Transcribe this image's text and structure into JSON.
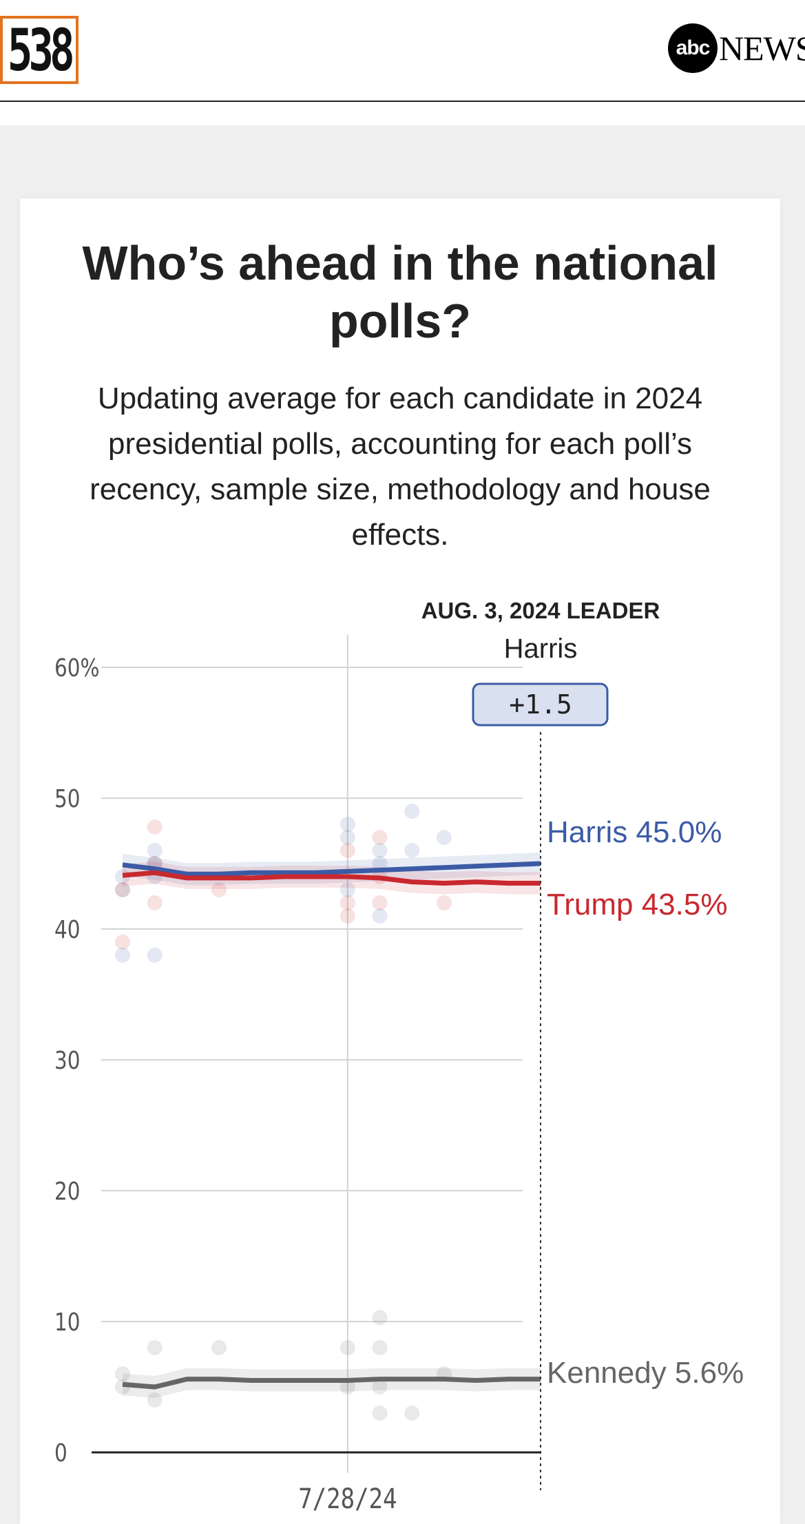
{
  "header": {
    "logo_text": "538",
    "partner_logo_badge": "abc",
    "partner_logo_word": "NEWS"
  },
  "card": {
    "title": "Who’s ahead in the national polls?",
    "subtitle": "Updating average for each candidate in 2024 presidential polls, accounting for each poll’s recency, sample size, methodology and house effects."
  },
  "colors": {
    "harris": "#3b5ba5",
    "trump": "#c8282e",
    "kennedy": "#666666",
    "grid": "#d4d4d4",
    "logo_accent": "#e3731f"
  },
  "chart_data": {
    "type": "line",
    "x_start": "2024-07-21",
    "x_end": "2024-08-03",
    "x_tick_labels": [
      {
        "label": "7/28/24",
        "date": "2024-07-28"
      }
    ],
    "ylim": [
      0,
      60
    ],
    "y_ticks": [
      {
        "value": 60,
        "label": "60%"
      },
      {
        "value": 50,
        "label": "50"
      },
      {
        "value": 40,
        "label": "40"
      },
      {
        "value": 30,
        "label": "30"
      },
      {
        "value": 20,
        "label": "20"
      },
      {
        "value": 10,
        "label": "10"
      },
      {
        "value": 0,
        "label": "0"
      }
    ],
    "grid": true,
    "leader": {
      "heading": "AUG. 3, 2024 LEADER",
      "name": "Harris",
      "margin": "+1.5",
      "date": "2024-08-03"
    },
    "series": [
      {
        "name": "Harris",
        "color_key": "harris",
        "label": "Harris 45.0%",
        "dates": [
          "2024-07-21",
          "2024-07-22",
          "2024-07-23",
          "2024-07-24",
          "2024-07-25",
          "2024-07-26",
          "2024-07-27",
          "2024-07-28",
          "2024-07-29",
          "2024-07-30",
          "2024-07-31",
          "2024-08-01",
          "2024-08-02",
          "2024-08-03"
        ],
        "values": [
          44.9,
          44.6,
          44.2,
          44.2,
          44.3,
          44.3,
          44.3,
          44.4,
          44.5,
          44.6,
          44.7,
          44.8,
          44.9,
          45.0
        ],
        "polls": [
          {
            "date": "2024-07-21",
            "value": 44
          },
          {
            "date": "2024-07-21",
            "value": 43
          },
          {
            "date": "2024-07-21",
            "value": 38
          },
          {
            "date": "2024-07-22",
            "value": 46
          },
          {
            "date": "2024-07-22",
            "value": 45
          },
          {
            "date": "2024-07-22",
            "value": 44
          },
          {
            "date": "2024-07-22",
            "value": 38
          },
          {
            "date": "2024-07-28",
            "value": 48
          },
          {
            "date": "2024-07-28",
            "value": 47
          },
          {
            "date": "2024-07-28",
            "value": 43
          },
          {
            "date": "2024-07-29",
            "value": 46
          },
          {
            "date": "2024-07-29",
            "value": 45
          },
          {
            "date": "2024-07-29",
            "value": 41
          },
          {
            "date": "2024-07-30",
            "value": 49
          },
          {
            "date": "2024-07-30",
            "value": 46
          },
          {
            "date": "2024-07-31",
            "value": 47
          }
        ]
      },
      {
        "name": "Trump",
        "color_key": "trump",
        "label": "Trump 43.5%",
        "dates": [
          "2024-07-21",
          "2024-07-22",
          "2024-07-23",
          "2024-07-24",
          "2024-07-25",
          "2024-07-26",
          "2024-07-27",
          "2024-07-28",
          "2024-07-29",
          "2024-07-30",
          "2024-07-31",
          "2024-08-01",
          "2024-08-02",
          "2024-08-03"
        ],
        "values": [
          44.1,
          44.3,
          43.9,
          43.9,
          43.9,
          44.0,
          44.0,
          44.0,
          43.9,
          43.6,
          43.5,
          43.6,
          43.5,
          43.5
        ],
        "polls": [
          {
            "date": "2024-07-21",
            "value": 43
          },
          {
            "date": "2024-07-21",
            "value": 39
          },
          {
            "date": "2024-07-22",
            "value": 47.8
          },
          {
            "date": "2024-07-22",
            "value": 45
          },
          {
            "date": "2024-07-22",
            "value": 42
          },
          {
            "date": "2024-07-24",
            "value": 43
          },
          {
            "date": "2024-07-28",
            "value": 46
          },
          {
            "date": "2024-07-28",
            "value": 42
          },
          {
            "date": "2024-07-28",
            "value": 41
          },
          {
            "date": "2024-07-29",
            "value": 47
          },
          {
            "date": "2024-07-29",
            "value": 44
          },
          {
            "date": "2024-07-29",
            "value": 42
          },
          {
            "date": "2024-07-31",
            "value": 42
          }
        ]
      },
      {
        "name": "Kennedy",
        "color_key": "kennedy",
        "label": "Kennedy 5.6%",
        "dates": [
          "2024-07-21",
          "2024-07-22",
          "2024-07-23",
          "2024-07-24",
          "2024-07-25",
          "2024-07-26",
          "2024-07-27",
          "2024-07-28",
          "2024-07-29",
          "2024-07-30",
          "2024-07-31",
          "2024-08-01",
          "2024-08-02",
          "2024-08-03"
        ],
        "values": [
          5.2,
          5.0,
          5.6,
          5.6,
          5.5,
          5.5,
          5.5,
          5.5,
          5.6,
          5.6,
          5.6,
          5.5,
          5.6,
          5.6
        ],
        "polls": [
          {
            "date": "2024-07-21",
            "value": 6
          },
          {
            "date": "2024-07-21",
            "value": 5
          },
          {
            "date": "2024-07-22",
            "value": 8
          },
          {
            "date": "2024-07-22",
            "value": 4
          },
          {
            "date": "2024-07-24",
            "value": 8
          },
          {
            "date": "2024-07-28",
            "value": 8
          },
          {
            "date": "2024-07-28",
            "value": 5
          },
          {
            "date": "2024-07-29",
            "value": 10.3
          },
          {
            "date": "2024-07-29",
            "value": 8
          },
          {
            "date": "2024-07-29",
            "value": 5
          },
          {
            "date": "2024-07-29",
            "value": 3
          },
          {
            "date": "2024-07-30",
            "value": 3
          },
          {
            "date": "2024-07-31",
            "value": 6
          }
        ]
      }
    ]
  }
}
